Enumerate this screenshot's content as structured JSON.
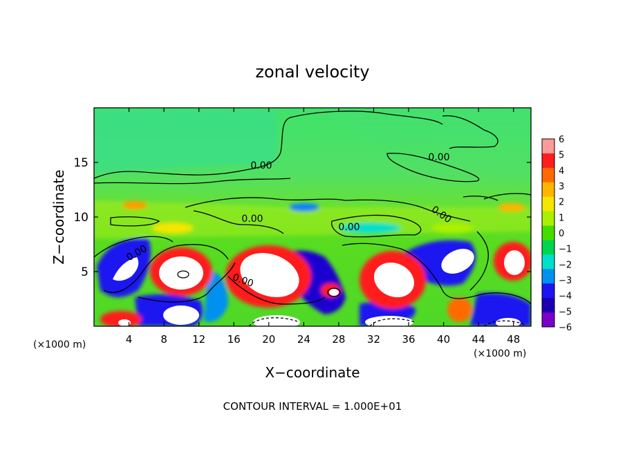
{
  "chart_data": {
    "type": "heatmap",
    "title": "zonal velocity",
    "xlabel": "X−coordinate",
    "ylabel": "Z−coordinate",
    "x_unit_left": "(×1000 m)",
    "x_unit_right": "(×1000 m)",
    "footer": "CONTOUR INTERVAL = 1.000E+01",
    "xlim": [
      0,
      50
    ],
    "ylim": [
      0,
      20
    ],
    "x_ticks": [
      4,
      8,
      12,
      16,
      20,
      24,
      28,
      32,
      36,
      40,
      44,
      48
    ],
    "y_ticks": [
      5,
      10,
      15
    ],
    "contour_labels": [
      "0.00",
      "0.00",
      "0.00",
      "0.00",
      "0.00",
      "0.00",
      "0.00",
      "0.00"
    ],
    "colorbar": {
      "levels": [
        6,
        5,
        4,
        3,
        2,
        1,
        0,
        -1,
        -2,
        -3,
        -4,
        -5,
        -6
      ],
      "labels": [
        "6",
        "5",
        "4",
        "3",
        "2",
        "1",
        "0",
        "−1",
        "−2",
        "−3",
        "−4",
        "−5",
        "−6"
      ],
      "colors": [
        "#ff9a9a",
        "#ff1e1e",
        "#ff6a00",
        "#ffb400",
        "#f5e600",
        "#aaf000",
        "#44dd00",
        "#00d450",
        "#00e0c8",
        "#0090f0",
        "#1e14f0",
        "#1a00b0",
        "#7a00c8"
      ]
    }
  }
}
